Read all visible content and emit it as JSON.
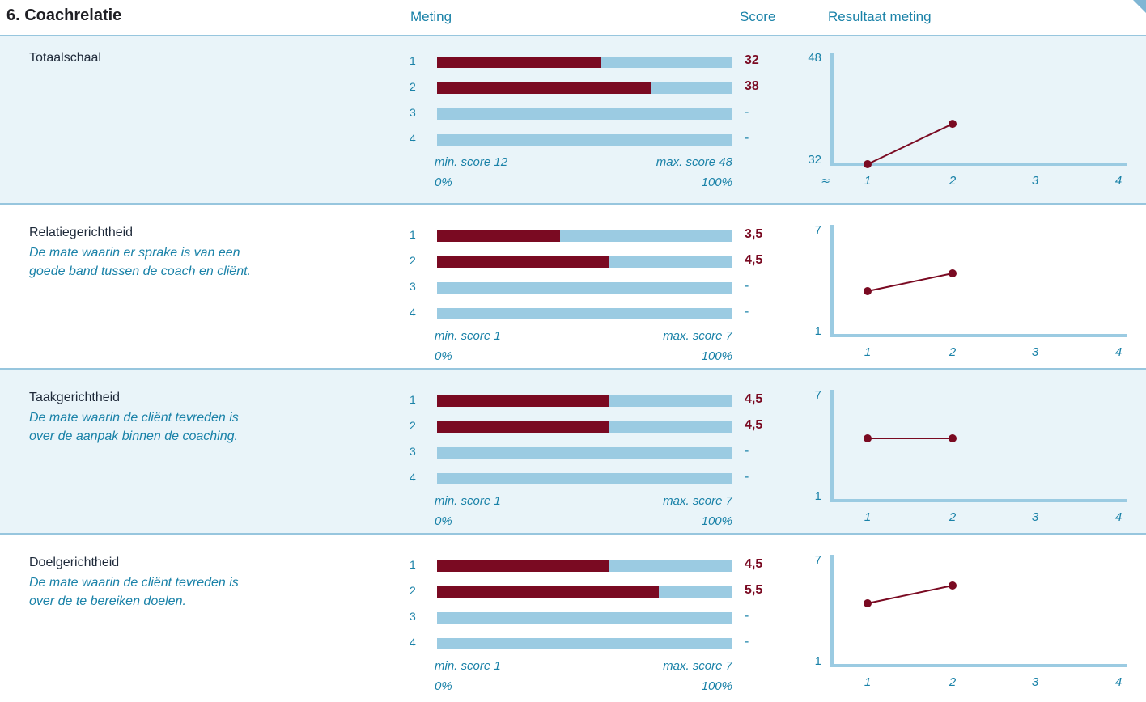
{
  "header": {
    "title": "6. Coachrelatie",
    "col_meting": "Meting",
    "col_score": "Score",
    "col_resultaat": "Resultaat meting"
  },
  "colors": {
    "fill": "#7a0a22",
    "track": "#9bcbe2",
    "accent_text": "#1a82a8",
    "shade": "#e9f4f9"
  },
  "sections": [
    {
      "name": "Totaalschaal",
      "desc_lines": [],
      "min_label": "min. score 12",
      "max_label": "max. score 48",
      "pct_min": "0%",
      "pct_max": "100%",
      "min": 12,
      "max": 48,
      "meting_labels": [
        "1",
        "2",
        "3",
        "4"
      ],
      "scores": [
        32,
        38,
        null,
        null
      ],
      "score_labels": [
        "32",
        "38",
        "-",
        "-"
      ],
      "chart_data": {
        "type": "line",
        "x": [
          1,
          2,
          3,
          4
        ],
        "x_tick_labels": [
          "1",
          "2",
          "3",
          "4"
        ],
        "y_tick_labels": [
          "48",
          "32"
        ],
        "ylim": [
          32,
          48
        ],
        "axis_break_symbol": "≈",
        "series": [
          {
            "values": [
              32,
              38,
              null,
              null
            ]
          }
        ]
      }
    },
    {
      "name": "Relatiegerichtheid",
      "desc_lines": [
        "De mate waarin er sprake is van een",
        "goede band tussen de coach en cliënt."
      ],
      "min_label": "min. score 1",
      "max_label": "max. score 7",
      "pct_min": "0%",
      "pct_max": "100%",
      "min": 1,
      "max": 7,
      "meting_labels": [
        "1",
        "2",
        "3",
        "4"
      ],
      "scores": [
        3.5,
        4.5,
        null,
        null
      ],
      "score_labels": [
        "3,5",
        "4,5",
        "-",
        "-"
      ],
      "chart_data": {
        "type": "line",
        "x": [
          1,
          2,
          3,
          4
        ],
        "x_tick_labels": [
          "1",
          "2",
          "3",
          "4"
        ],
        "y_tick_labels": [
          "7",
          "1"
        ],
        "ylim": [
          1,
          7
        ],
        "series": [
          {
            "values": [
              3.5,
              4.5,
              null,
              null
            ]
          }
        ]
      }
    },
    {
      "name": "Taakgerichtheid",
      "desc_lines": [
        "De mate waarin de cliënt tevreden is",
        "over de aanpak binnen de coaching."
      ],
      "min_label": "min. score 1",
      "max_label": "max. score 7",
      "pct_min": "0%",
      "pct_max": "100%",
      "min": 1,
      "max": 7,
      "meting_labels": [
        "1",
        "2",
        "3",
        "4"
      ],
      "scores": [
        4.5,
        4.5,
        null,
        null
      ],
      "score_labels": [
        "4,5",
        "4,5",
        "-",
        "-"
      ],
      "chart_data": {
        "type": "line",
        "x": [
          1,
          2,
          3,
          4
        ],
        "x_tick_labels": [
          "1",
          "2",
          "3",
          "4"
        ],
        "y_tick_labels": [
          "7",
          "1"
        ],
        "ylim": [
          1,
          7
        ],
        "series": [
          {
            "values": [
              4.5,
              4.5,
              null,
              null
            ]
          }
        ]
      }
    },
    {
      "name": "Doelgerichtheid",
      "desc_lines": [
        "De mate waarin de cliënt tevreden is",
        "over de te bereiken doelen."
      ],
      "min_label": "min. score 1",
      "max_label": "max. score 7",
      "pct_min": "0%",
      "pct_max": "100%",
      "min": 1,
      "max": 7,
      "meting_labels": [
        "1",
        "2",
        "3",
        "4"
      ],
      "scores": [
        4.5,
        5.5,
        null,
        null
      ],
      "score_labels": [
        "4,5",
        "5,5",
        "-",
        "-"
      ],
      "chart_data": {
        "type": "line",
        "x": [
          1,
          2,
          3,
          4
        ],
        "x_tick_labels": [
          "1",
          "2",
          "3",
          "4"
        ],
        "y_tick_labels": [
          "7",
          "1"
        ],
        "ylim": [
          1,
          7
        ],
        "series": [
          {
            "values": [
              4.5,
              5.5,
              null,
              null
            ]
          }
        ]
      }
    }
  ]
}
